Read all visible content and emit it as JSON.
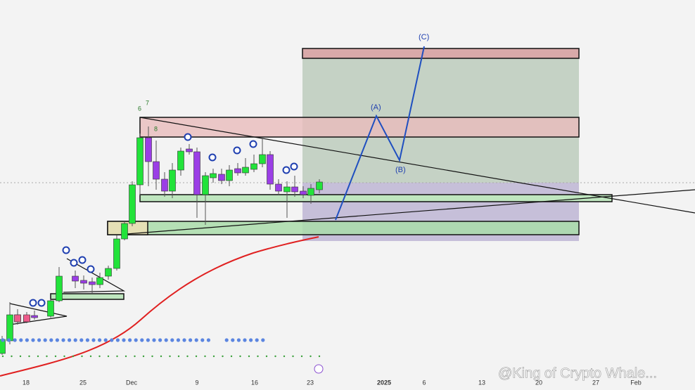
{
  "chart_data": {
    "type": "candlestick",
    "x_labels": [
      "18",
      "25",
      "Dec",
      "9",
      "16",
      "23",
      "2025",
      "6",
      "13",
      "20",
      "27",
      "Feb"
    ],
    "wave_labels": [
      "(A)",
      "(B)",
      "(C)"
    ],
    "counts": [
      "6",
      "7",
      "8"
    ],
    "watermark": "@King of Crypto Whale..."
  }
}
